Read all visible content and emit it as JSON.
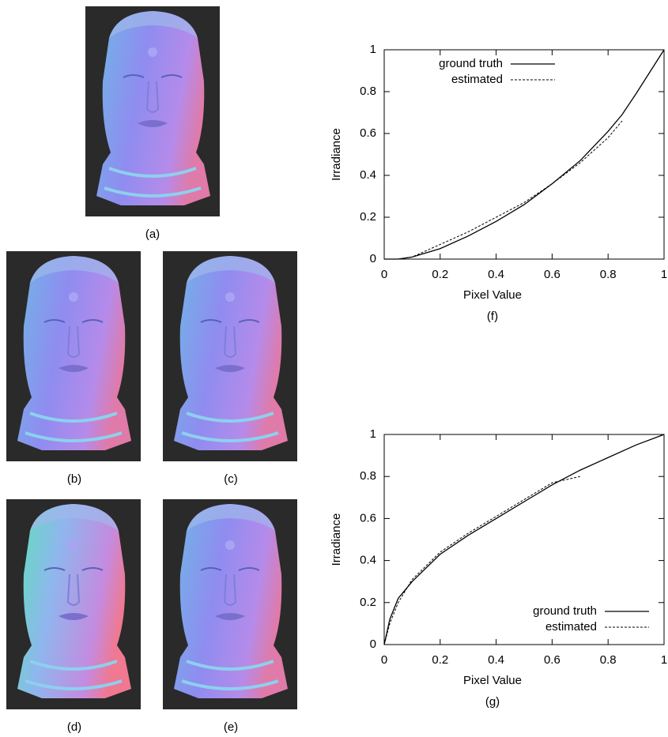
{
  "image_labels": [
    "(a)",
    "(b)",
    "(c)",
    "(d)",
    "(e)"
  ],
  "chart_data": [
    {
      "type": "line",
      "caption": "(f)",
      "x_label": "Pixel Value",
      "y_label": "Irradiance",
      "x": [
        0,
        0.05,
        0.1,
        0.2,
        0.3,
        0.4,
        0.5,
        0.6,
        0.7,
        0.8,
        0.85,
        0.9,
        1
      ],
      "series": [
        {
          "name": "ground truth",
          "color": "#000000",
          "style": "solid",
          "values": [
            0,
            0,
            0.01,
            0.05,
            0.11,
            0.18,
            0.26,
            0.36,
            0.47,
            0.61,
            0.69,
            0.79,
            1
          ]
        },
        {
          "name": "estimated",
          "color": "#000000",
          "style": "dashed",
          "values": [
            null,
            0,
            0.01,
            0.07,
            0.13,
            0.2,
            0.27,
            0.36,
            0.46,
            0.58,
            0.66,
            null,
            null
          ]
        }
      ],
      "xlim": [
        0,
        1
      ],
      "ylim": [
        0,
        1
      ],
      "xticks": [
        0,
        0.2,
        0.4,
        0.6,
        0.8,
        1
      ],
      "yticks": [
        0,
        0.2,
        0.4,
        0.6,
        0.8,
        1
      ],
      "legend": "top-left"
    },
    {
      "type": "line",
      "caption": "(g)",
      "x_label": "Pixel Value",
      "y_label": "Irradiance",
      "x": [
        0,
        0.02,
        0.05,
        0.1,
        0.2,
        0.3,
        0.4,
        0.5,
        0.6,
        0.7,
        0.8,
        0.9,
        1
      ],
      "series": [
        {
          "name": "ground truth",
          "color": "#000000",
          "style": "solid",
          "values": [
            0,
            0.12,
            0.22,
            0.3,
            0.43,
            0.52,
            0.6,
            0.68,
            0.76,
            0.83,
            0.89,
            0.95,
            1
          ]
        },
        {
          "name": "estimated",
          "color": "#000000",
          "style": "dashed",
          "values": [
            0,
            0.1,
            0.2,
            0.31,
            0.44,
            0.53,
            0.61,
            0.69,
            0.77,
            0.8,
            null,
            null,
            null
          ]
        }
      ],
      "xlim": [
        0,
        1
      ],
      "ylim": [
        0,
        1
      ],
      "xticks": [
        0,
        0.2,
        0.4,
        0.6,
        0.8,
        1
      ],
      "yticks": [
        0,
        0.2,
        0.4,
        0.6,
        0.8,
        1
      ],
      "legend": "bottom-right"
    }
  ]
}
